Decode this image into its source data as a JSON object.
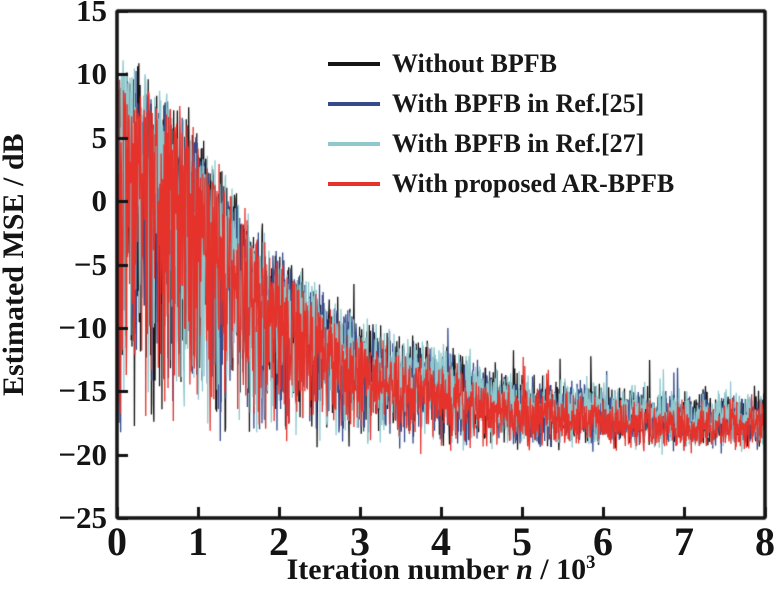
{
  "chart_data": {
    "type": "line",
    "title": "",
    "ylabel": "Estimated MSE / dB",
    "xlabel_parts": {
      "prefix": "Iteration number ",
      "variable": "n",
      "mid": " / 10",
      "superscript": "3"
    },
    "xlim": [
      0,
      8
    ],
    "ylim": [
      -25,
      15
    ],
    "x_ticks": [
      0,
      1,
      2,
      3,
      4,
      5,
      6,
      7,
      8
    ],
    "x_tick_labels": [
      "0",
      "1",
      "2",
      "3",
      "4",
      "5",
      "6",
      "7",
      "8"
    ],
    "y_ticks": [
      15,
      10,
      5,
      0,
      -5,
      -10,
      -15,
      -20,
      -25
    ],
    "y_tick_labels": [
      "15",
      "10",
      "5",
      "0",
      "−5",
      "−10",
      "−15",
      "−20",
      "−25"
    ],
    "grid": false,
    "legend_position": "top-right-inside",
    "frame_color": "#141414",
    "background_color": "#ffffff",
    "noise_floor_db": -20,
    "floor_jitter_db": 0.5,
    "fill_gamma": 0.45,
    "jitter_db": 1.3,
    "spike_probability": 0.02,
    "samples_per_series": 1600,
    "envelope_x": [
      0,
      0.2,
      0.5,
      0.8,
      1.0,
      1.3,
      1.6,
      2.0,
      2.5,
      3.0,
      3.5,
      4.0,
      4.5,
      5.0,
      6.0,
      7.0,
      8.0
    ],
    "series": [
      {
        "name": "Without BPFB",
        "color": "#151515",
        "seed": 11,
        "envelope_db": [
          10.8,
          10.4,
          8.8,
          7.0,
          5.2,
          2.2,
          -1.3,
          -4.3,
          -7.0,
          -9.8,
          -11.3,
          -12.3,
          -13.4,
          -14.3,
          -15.4,
          -15.8,
          -15.8
        ]
      },
      {
        "name": "With BPFB in Ref.[25]",
        "color": "#364a8c",
        "seed": 22,
        "envelope_db": [
          10.2,
          9.8,
          8.2,
          6.4,
          4.5,
          1.5,
          -2.0,
          -5.0,
          -7.8,
          -10.3,
          -11.4,
          -12.8,
          -13.8,
          -14.8,
          -15.6,
          -16.1,
          -16.1
        ]
      },
      {
        "name": "With BPFB in Ref.[27]",
        "color": "#8fc9ce",
        "seed": 33,
        "envelope_db": [
          10.4,
          10.7,
          8.7,
          6.8,
          4.9,
          1.9,
          -1.6,
          -4.6,
          -7.4,
          -10.0,
          -11.6,
          -11.9,
          -13.6,
          -14.6,
          -15.4,
          -15.9,
          -15.9
        ]
      },
      {
        "name": "With proposed AR-BPFB",
        "color": "#e5322b",
        "seed": 44,
        "envelope_db": [
          10.1,
          10.0,
          8.4,
          6.6,
          4.6,
          1.6,
          -1.9,
          -5.3,
          -8.4,
          -11.3,
          -12.8,
          -13.8,
          -14.8,
          -15.6,
          -16.4,
          -16.8,
          -16.8
        ]
      }
    ],
    "description": "Noisy MSE learning curves fluctuating between a decaying upper envelope and a noise floor near −20 dB, converging to about −17 dB"
  }
}
